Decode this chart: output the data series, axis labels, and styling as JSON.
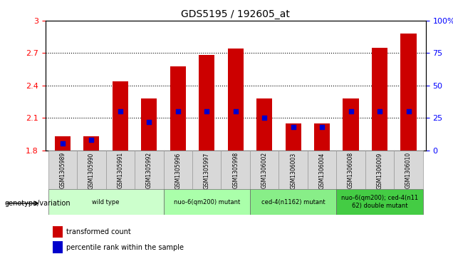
{
  "title": "GDS5195 / 192605_at",
  "samples": [
    "GSM1305989",
    "GSM1305990",
    "GSM1305991",
    "GSM1305992",
    "GSM1305996",
    "GSM1305997",
    "GSM1305998",
    "GSM1306002",
    "GSM1306003",
    "GSM1306004",
    "GSM1306008",
    "GSM1306009",
    "GSM1306010"
  ],
  "transformed_count": [
    1.93,
    1.93,
    2.44,
    2.28,
    2.58,
    2.68,
    2.74,
    2.28,
    2.05,
    2.05,
    2.28,
    2.75,
    2.88
  ],
  "percentile_rank_pct": [
    5,
    8,
    30,
    22,
    30,
    30,
    30,
    25,
    18,
    18,
    30,
    30,
    30
  ],
  "ymin": 1.8,
  "ymax": 3.0,
  "yticks": [
    1.8,
    2.1,
    2.4,
    2.7,
    3.0
  ],
  "ytick_labels": [
    "1.8",
    "2.1",
    "2.4",
    "2.7",
    "3"
  ],
  "right_yticks": [
    0,
    25,
    50,
    75,
    100
  ],
  "right_ytick_labels": [
    "0",
    "25",
    "50",
    "75",
    "100%"
  ],
  "bar_color": "#cc0000",
  "marker_color": "#0000cc",
  "groups": [
    {
      "label": "wild type",
      "indices": [
        0,
        1,
        2,
        3
      ],
      "color": "#ccffcc"
    },
    {
      "label": "nuo-6(qm200) mutant",
      "indices": [
        4,
        5,
        6
      ],
      "color": "#aaffaa"
    },
    {
      "label": "ced-4(n1162) mutant",
      "indices": [
        7,
        8,
        9
      ],
      "color": "#88ee88"
    },
    {
      "label": "nuo-6(qm200); ced-4(n11\n62) double mutant",
      "indices": [
        10,
        11,
        12
      ],
      "color": "#44cc44"
    }
  ],
  "genotype_label": "genotype/variation",
  "legend_items": [
    {
      "label": "transformed count",
      "color": "#cc0000"
    },
    {
      "label": "percentile rank within the sample",
      "color": "#0000cc"
    }
  ]
}
